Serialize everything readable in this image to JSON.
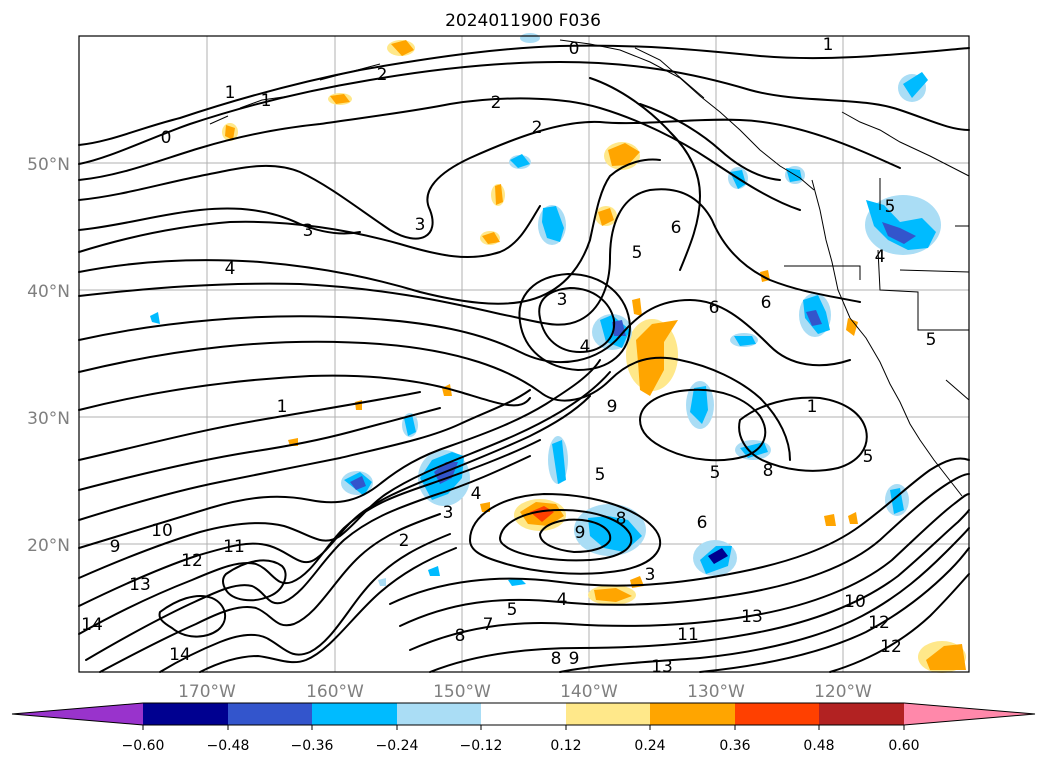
{
  "title": "2024011900 F036",
  "lat_labels": [
    "50°N",
    "40°N",
    "30°N",
    "20°N"
  ],
  "lon_labels": [
    "170°W",
    "160°W",
    "150°W",
    "140°W",
    "130°W",
    "120°W"
  ],
  "colorbar": {
    "ticks": [
      "−0.60",
      "−0.48",
      "−0.36",
      "−0.24",
      "−0.12",
      "0.12",
      "0.24",
      "0.36",
      "0.48",
      "0.60"
    ],
    "colors": [
      "#9933cc",
      "#000090",
      "#3355cc",
      "#00bbff",
      "#aaddf5",
      "#ffffff",
      "#ffe88a",
      "#ffa500",
      "#ff4000",
      "#b22222",
      "#ff88aa"
    ]
  },
  "fill_colors": {
    "blue_light": "#aaddf5",
    "blue": "#00bbff",
    "blue_mid": "#3355cc",
    "navy": "#000090",
    "orange_light": "#ffe88a",
    "orange": "#ffa500",
    "red_orange": "#ff4000"
  },
  "contour_labels": [
    "0",
    "1",
    "1",
    "2",
    "2",
    "2",
    "0",
    "1",
    "3",
    "3",
    "4",
    "3",
    "5",
    "6",
    "6",
    "6",
    "4",
    "1",
    "9",
    "5",
    "5",
    "8",
    "4",
    "3",
    "9",
    "8",
    "6",
    "5",
    "4",
    "3",
    "10",
    "9",
    "12",
    "13",
    "11",
    "14",
    "11",
    "12",
    "13",
    "12",
    "10",
    "13",
    "7",
    "8",
    "8",
    "9",
    "5",
    "4",
    "5",
    "5",
    "1",
    "2",
    "14"
  ]
}
